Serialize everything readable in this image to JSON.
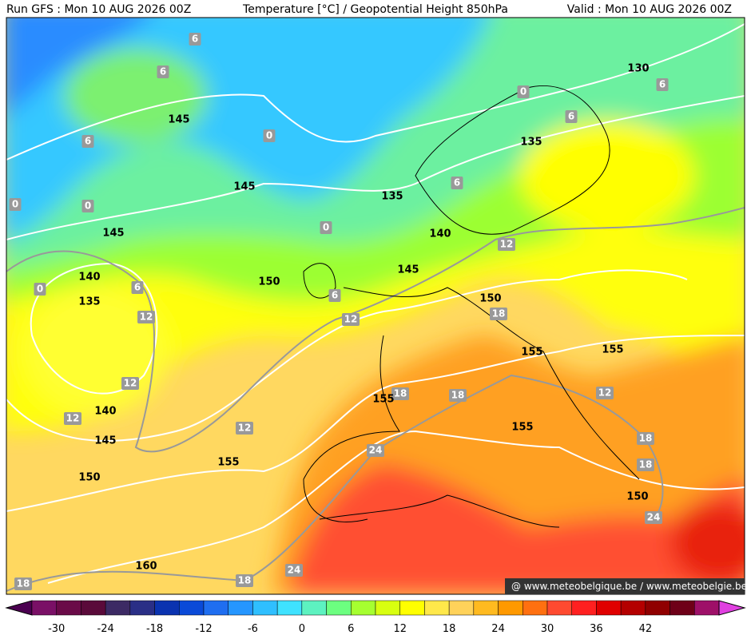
{
  "header": {
    "run": "Run GFS : Mon 10 AUG 2026 00Z",
    "title": "Temperature [°C] / Geopotential Height 850hPa",
    "valid": "Valid : Mon 10 AUG 2026 00Z"
  },
  "height_labels": [
    "145",
    "145",
    "145",
    "135",
    "140",
    "145",
    "150",
    "140",
    "135",
    "130",
    "135",
    "150",
    "155",
    "155",
    "155",
    "140",
    "145",
    "150",
    "155",
    "155",
    "150",
    "160"
  ],
  "temp_labels": [
    "6",
    "6",
    "6",
    "0",
    "0",
    "0",
    "0",
    "6",
    "0",
    "12",
    "12",
    "12",
    "12",
    "6",
    "12",
    "12",
    "6",
    "6",
    "6",
    "0",
    "18",
    "18",
    "18",
    "12",
    "18",
    "18",
    "24",
    "24",
    "24",
    "18",
    "18"
  ],
  "watermark": "@ www.meteobelgique.be / www.meteobelgie.be",
  "colorbar": {
    "labels": [
      "-30",
      "-24",
      "-18",
      "-12",
      "-6",
      "0",
      "6",
      "12",
      "18",
      "24",
      "30",
      "36",
      "42"
    ],
    "colors": [
      "#4b0050",
      "#7a1066",
      "#6a0a48",
      "#5a0a3a",
      "#3c2a64",
      "#2a2f86",
      "#0a33b0",
      "#0a4ad8",
      "#1f6ef0",
      "#2596ff",
      "#2fbfff",
      "#3fe2ff",
      "#5df2c0",
      "#6cff80",
      "#a6ff30",
      "#d8ff10",
      "#ffff00",
      "#ffe84a",
      "#ffd25a",
      "#ffba20",
      "#ff9900",
      "#ff7010",
      "#ff4a30",
      "#ff2020",
      "#e00000",
      "#b40000",
      "#900000",
      "#6e0018",
      "#9e1068",
      "#e040e0"
    ]
  }
}
